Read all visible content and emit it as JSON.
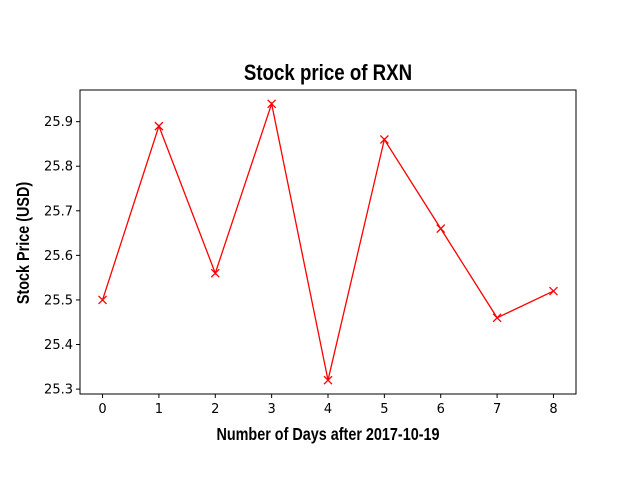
{
  "chart_data": {
    "type": "line",
    "title": "Stock price of RXN",
    "xlabel": "Number of Days after 2017-10-19",
    "ylabel": "Stock Price (USD)",
    "x": [
      0,
      1,
      2,
      3,
      4,
      5,
      6,
      7,
      8
    ],
    "series": [
      {
        "values": [
          25.5,
          25.89,
          25.56,
          25.94,
          25.32,
          25.86,
          25.66,
          25.46,
          25.52
        ],
        "color": "#ff0000",
        "marker": "x"
      }
    ],
    "xlim": [
      -0.4,
      8.4
    ],
    "ylim": [
      25.289,
      25.971
    ],
    "xticks": [
      "0",
      "1",
      "2",
      "3",
      "4",
      "5",
      "6",
      "7",
      "8"
    ],
    "yticks": [
      "25.3",
      "25.4",
      "25.5",
      "25.6",
      "25.7",
      "25.8",
      "25.9"
    ],
    "grid": false,
    "legend": false
  }
}
